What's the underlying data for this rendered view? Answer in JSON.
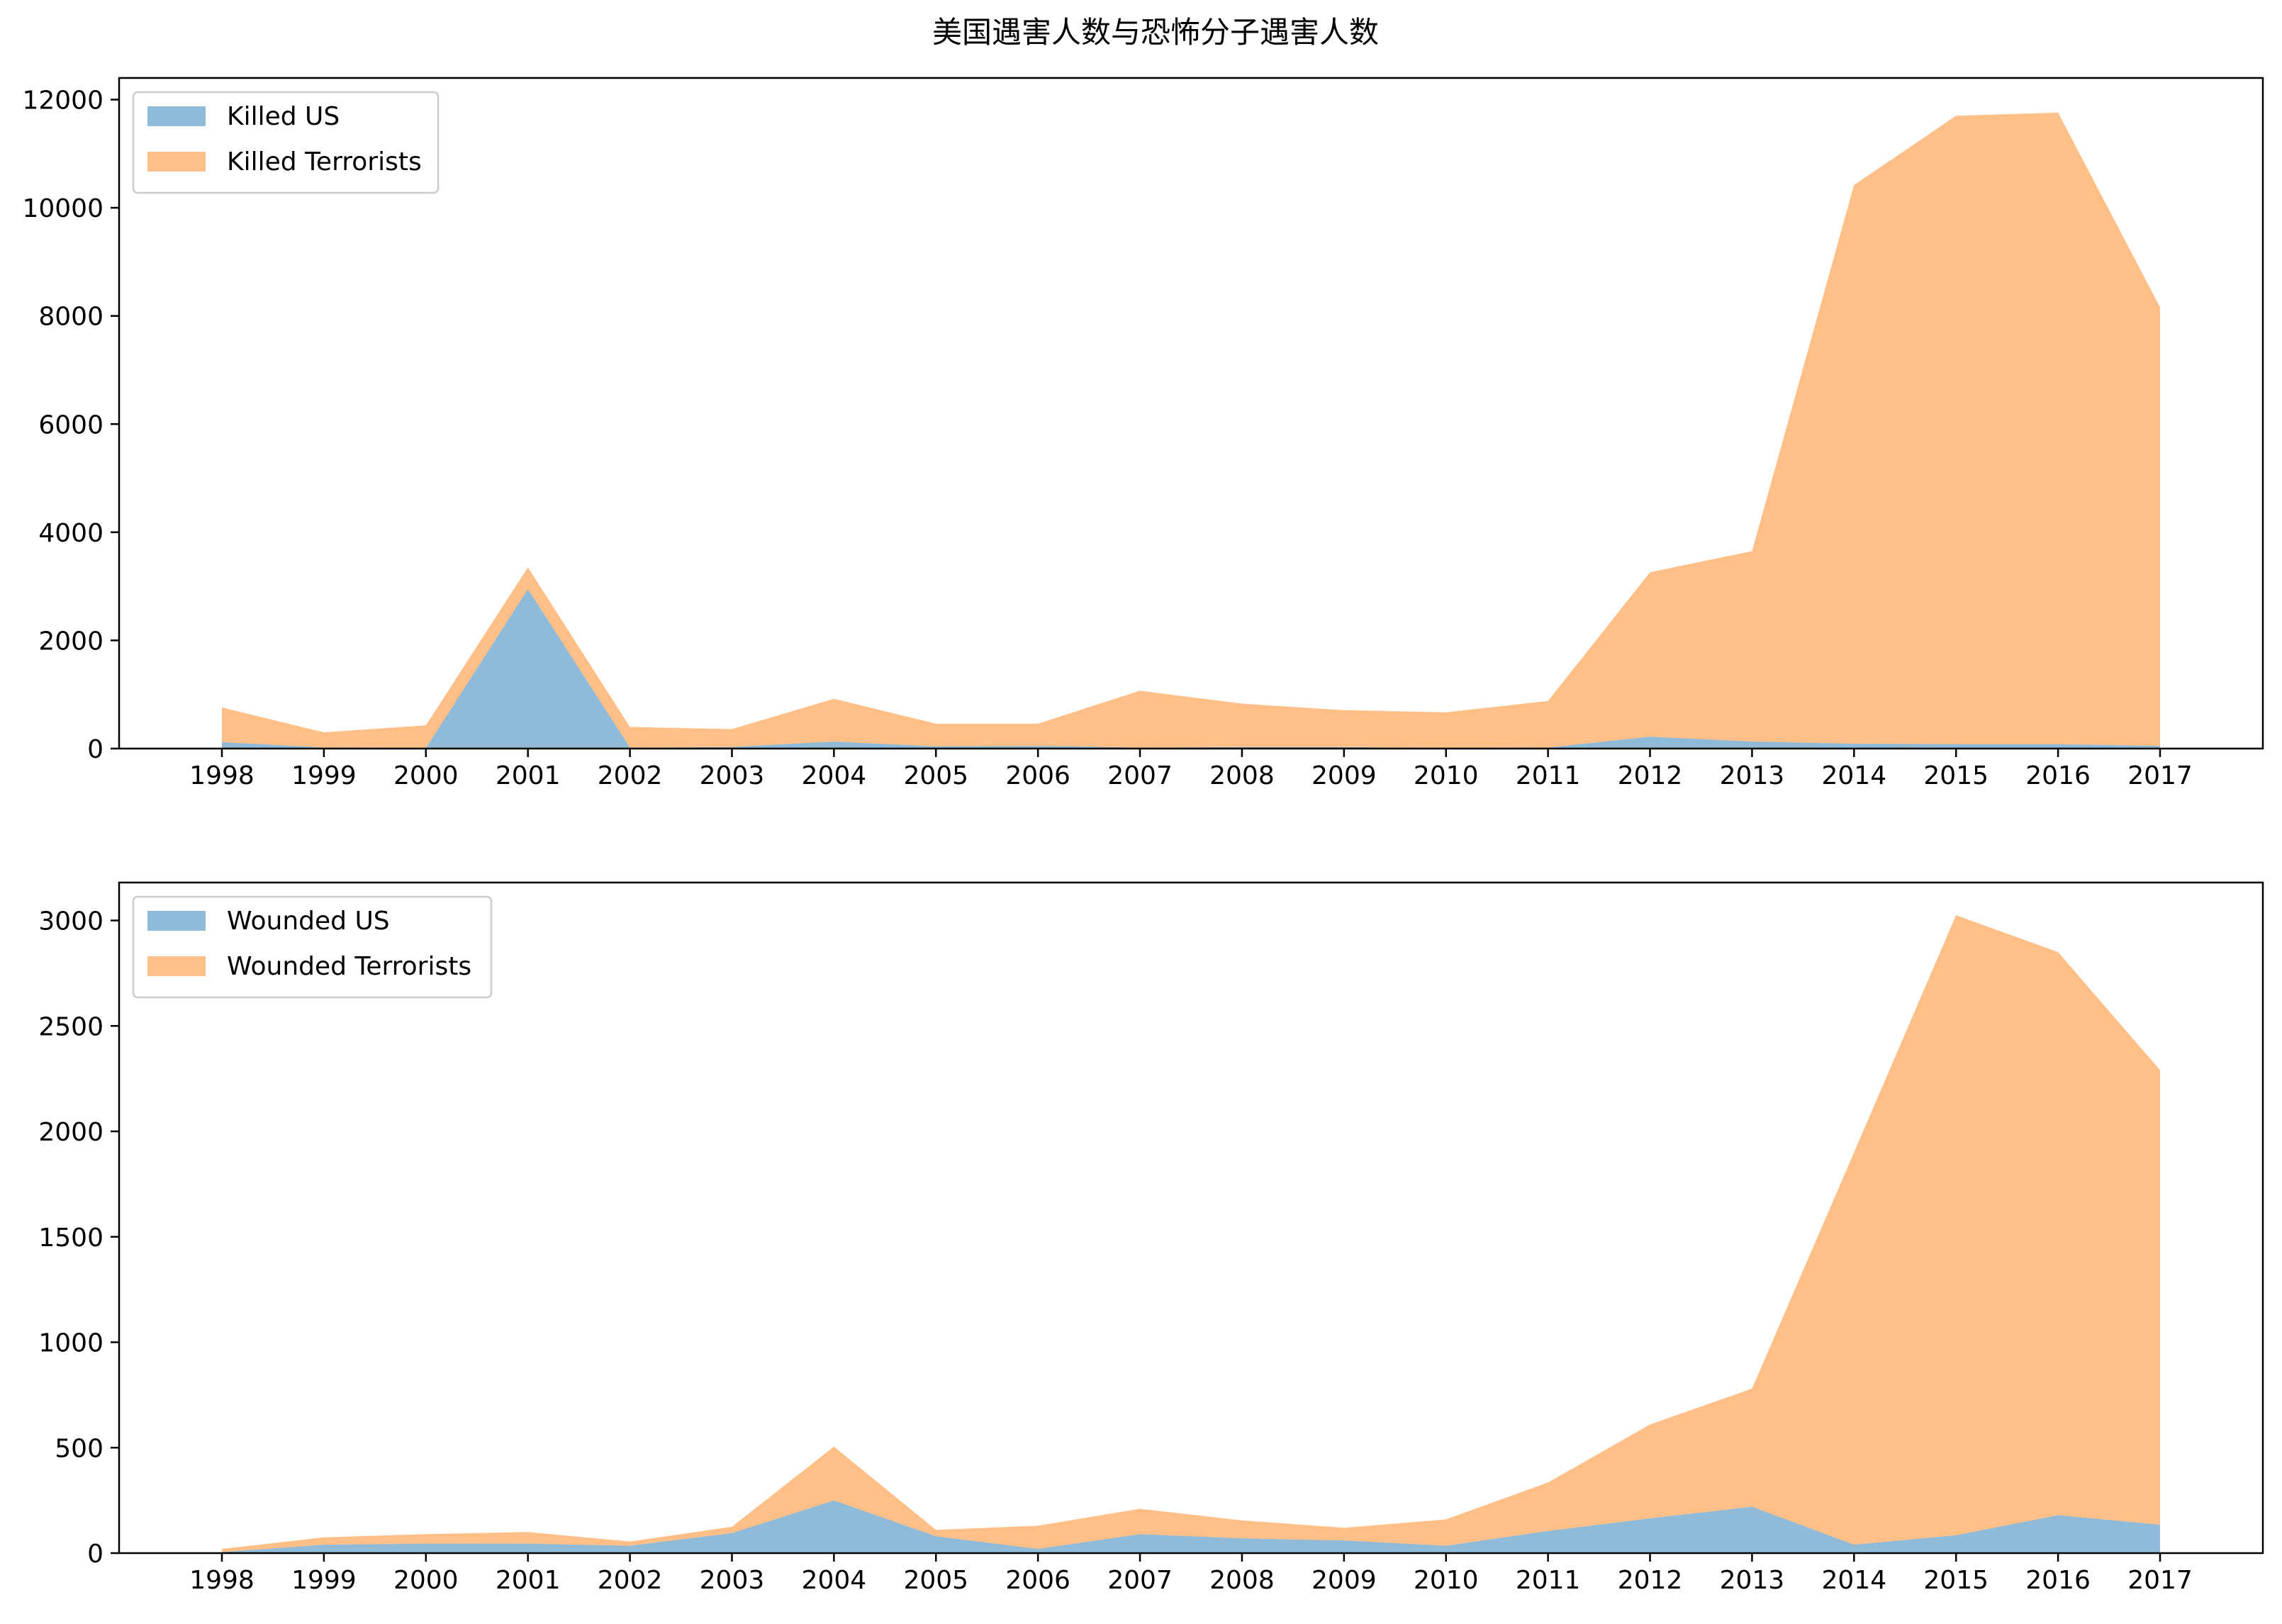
{
  "chart_data": {
    "title": "美国遇害人数与恐怖分子遇害人数",
    "charts": [
      {
        "type": "area",
        "stacked": true,
        "x": [
          "1998",
          "1999",
          "2000",
          "2001",
          "2002",
          "2003",
          "2004",
          "2005",
          "2006",
          "2007",
          "2008",
          "2009",
          "2010",
          "2011",
          "2012",
          "2013",
          "2014",
          "2015",
          "2016",
          "2017"
        ],
        "ylim": [
          0,
          12400
        ],
        "yticks": [
          0,
          2000,
          4000,
          6000,
          8000,
          10000,
          12000
        ],
        "legend_placement": "top-left",
        "grid": false,
        "series": [
          {
            "name": "Killed US",
            "color": "#1f77b4",
            "alpha": 0.5,
            "values": [
              120,
              20,
              10,
              2950,
              20,
              30,
              130,
              40,
              50,
              20,
              30,
              30,
              10,
              20,
              220,
              130,
              90,
              80,
              80,
              50
            ]
          },
          {
            "name": "Killed Terrorists",
            "color": "#ff7f0e",
            "alpha": 0.5,
            "values": [
              640,
              280,
              420,
              400,
              380,
              330,
              790,
              420,
              410,
              1050,
              800,
              680,
              660,
              860,
              3040,
              3520,
              10330,
              11620,
              11680,
              8110
            ]
          }
        ]
      },
      {
        "type": "area",
        "stacked": true,
        "x": [
          "1998",
          "1999",
          "2000",
          "2001",
          "2002",
          "2003",
          "2004",
          "2005",
          "2006",
          "2007",
          "2008",
          "2009",
          "2010",
          "2011",
          "2012",
          "2013",
          "2014",
          "2015",
          "2016",
          "2017"
        ],
        "ylim": [
          0,
          3180
        ],
        "yticks": [
          0,
          500,
          1000,
          1500,
          2000,
          2500,
          3000
        ],
        "legend_placement": "top-left",
        "grid": false,
        "series": [
          {
            "name": "Wounded US",
            "color": "#1f77b4",
            "alpha": 0.5,
            "values": [
              5,
              40,
              45,
              45,
              35,
              95,
              250,
              80,
              20,
              90,
              70,
              60,
              35,
              105,
              165,
              220,
              40,
              85,
              180,
              135
            ]
          },
          {
            "name": "Wounded Terrorists",
            "color": "#ff7f0e",
            "alpha": 0.5,
            "values": [
              15,
              35,
              45,
              55,
              20,
              30,
              255,
              30,
              110,
              120,
              85,
              60,
              125,
              230,
              445,
              560,
              1860,
              2940,
              2670,
              2155
            ]
          }
        ]
      }
    ]
  }
}
